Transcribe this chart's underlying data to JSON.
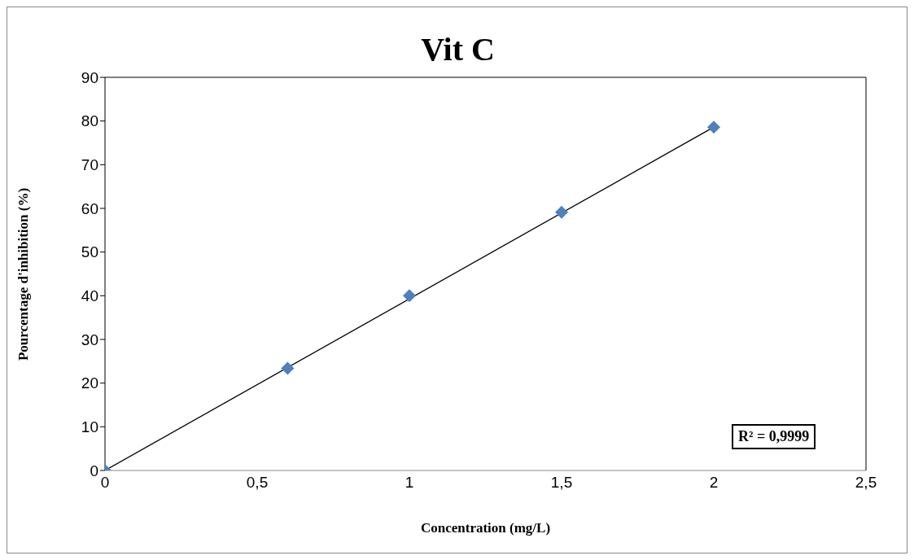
{
  "chart_data": {
    "type": "scatter",
    "title": "Vit C",
    "xlabel": "Concentration (mg/L)",
    "ylabel": "Pourcentage d'inhibition (%)",
    "xlim": [
      0,
      2.5
    ],
    "xticks": [
      0,
      {
        "value": 0.5,
        "label": "0,5"
      },
      1,
      {
        "value": 1.5,
        "label": "1,5"
      },
      2,
      {
        "value": 2.5,
        "label": "2,5"
      }
    ],
    "ylim": [
      0,
      90
    ],
    "yticks": [
      0,
      10,
      20,
      30,
      40,
      50,
      60,
      70,
      80,
      90
    ],
    "series": [
      {
        "color": "#4f81bd",
        "marker": "diamond",
        "x": [
          0,
          0.6,
          1,
          1.5,
          2
        ],
        "values": [
          0,
          23.4,
          40,
          59.1,
          78.6
        ]
      },
      {
        "type": "line",
        "color": "#000000",
        "marker": "none",
        "line_style": "solid",
        "x": [
          0,
          2
        ],
        "values": [
          0,
          78.6
        ]
      }
    ],
    "annotations": [
      "R² = 0,9999"
    ]
  }
}
